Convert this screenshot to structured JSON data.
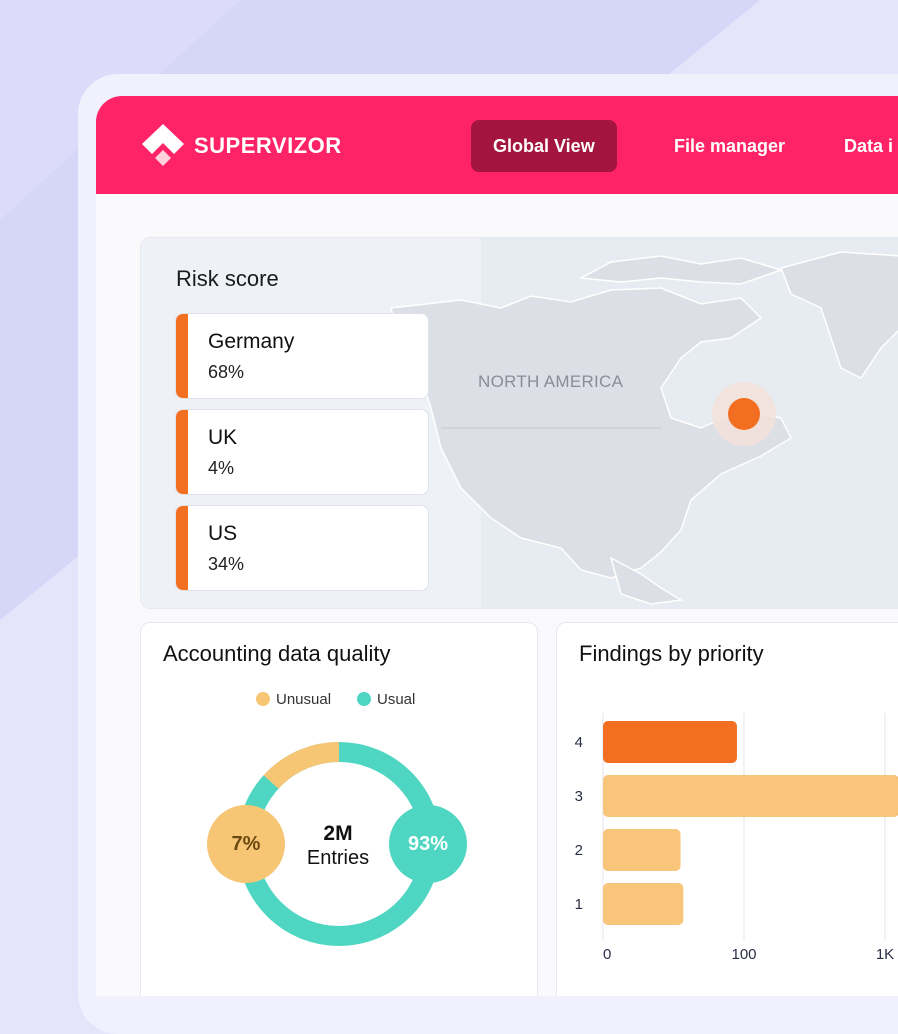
{
  "app": {
    "brand": "SUPERVIZOR",
    "nav": [
      {
        "label": "Global View",
        "active": true
      },
      {
        "label": "File manager",
        "active": false
      },
      {
        "label": "Data i",
        "active": false
      }
    ]
  },
  "risk": {
    "title": "Risk score",
    "items": [
      {
        "country": "Germany",
        "value": "68%"
      },
      {
        "country": "UK",
        "value": "4%"
      },
      {
        "country": "US",
        "value": "34%"
      }
    ],
    "region_label": "NORTH AMERICA"
  },
  "quality": {
    "title": "Accounting data quality",
    "legend": [
      {
        "label": "Unusual",
        "color": "#f7c675"
      },
      {
        "label": "Usual",
        "color": "#4fd6c3"
      }
    ],
    "center_value": "2M",
    "center_label": "Entries",
    "unusual_pct": "7%",
    "usual_pct": "93%"
  },
  "findings": {
    "title": "Findings by priority"
  },
  "colors": {
    "brand": "#fe2266",
    "nav_active": "#a3143f",
    "accent_orange": "#f26f22",
    "unusual": "#f7c675",
    "usual": "#4fd6c3"
  },
  "chart_data": {
    "type": "bar",
    "orientation": "horizontal",
    "title": "Findings by priority",
    "categories": [
      "4",
      "3",
      "2",
      "1"
    ],
    "values": [
      95,
      210,
      55,
      57
    ],
    "x_ticks": [
      "0",
      "100",
      "1K"
    ],
    "colors": [
      "#f26f22",
      "#f9c57a",
      "#f9c57a",
      "#f9c57a"
    ],
    "grid": true
  }
}
